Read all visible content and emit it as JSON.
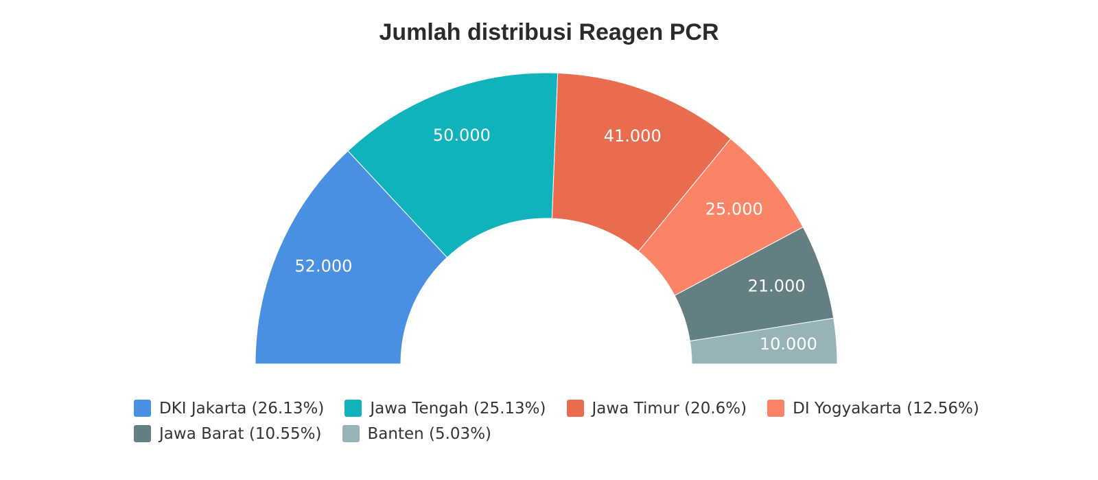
{
  "chart_data": {
    "type": "pie",
    "variant": "semi-donut",
    "title": "Jumlah distribusi Reagen PCR",
    "categories": [
      "DKI Jakarta",
      "Jawa Tengah",
      "Jawa Timur",
      "DI Yogyakarta",
      "Jawa Barat",
      "Banten"
    ],
    "values": [
      52000,
      50000,
      41000,
      25000,
      21000,
      10000
    ],
    "value_labels": [
      "52.000",
      "50.000",
      "41.000",
      "25.000",
      "21.000",
      "10.000"
    ],
    "percent_labels": [
      "26.13%",
      "25.13%",
      "20.6%",
      "12.56%",
      "10.55%",
      "5.03%"
    ],
    "legend_labels": [
      "DKI Jakarta (26.13%)",
      "Jawa Tengah (25.13%)",
      "Jawa Timur (20.6%)",
      "DI Yogyakarta (12.56%)",
      "Jawa Barat (10.55%)",
      "Banten (5.03%)"
    ],
    "colors": [
      "#4a90e2",
      "#10b3bc",
      "#e86c4d",
      "#fc8466",
      "#637f83",
      "#97b3b7"
    ],
    "legend_position": "bottom"
  }
}
